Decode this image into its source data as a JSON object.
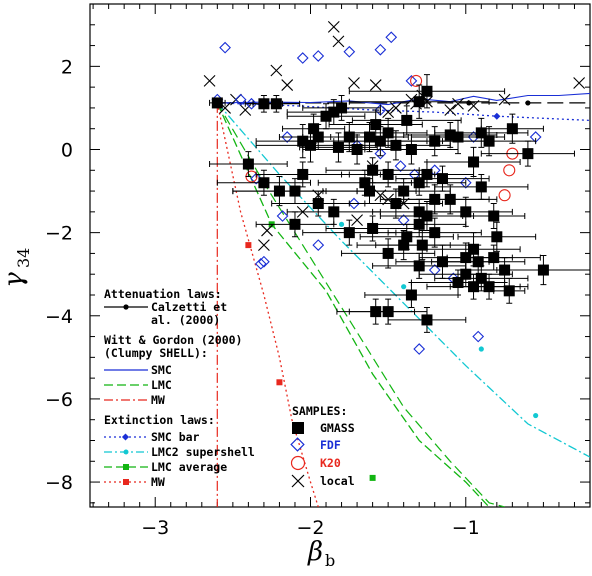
{
  "chart_data": {
    "type": "scatter",
    "xlabel": "β",
    "xlabel_sub": "b",
    "ylabel": "γ",
    "ylabel_sub": "34",
    "xlim": [
      -3.42,
      -0.2
    ],
    "ylim": [
      -8.6,
      3.5
    ],
    "xticks_major": [
      -3,
      -2,
      -1
    ],
    "xtick_labels": [
      "−3",
      "−2",
      "−1"
    ],
    "yticks_major": [
      2,
      0,
      -2,
      -4,
      -6,
      -8
    ],
    "ytick_labels": [
      "2",
      "0",
      "−2",
      "−4",
      "−6",
      "−8"
    ],
    "colors": {
      "gmass": "#000000",
      "fdf": "#1a2fd6",
      "k20": "#e8281e",
      "local": "#000000",
      "smc_shell": "#1a2fd6",
      "lmc_shell": "#12b512",
      "mw_shell": "#e8281e",
      "smc_bar": "#1a2fd6",
      "lmc2": "#12c8d2",
      "lmc_avg": "#12b512",
      "mw_ext": "#e8281e"
    },
    "legend_models": {
      "attenuation_head": "Attenuation laws:",
      "calzetti_1": "Calzetti et",
      "calzetti_2": "al. (2000)",
      "witt_head_1": "Witt & Gordon (2000)",
      "witt_head_2": "(Clumpy SHELL):",
      "smc": "SMC",
      "lmc": "LMC",
      "mw": "MW",
      "extinction_head": "Extinction laws:",
      "smc_bar": "SMC bar",
      "lmc2": "LMC2 supershell",
      "lmc_avg": "LMC average",
      "mw_ext": "MW"
    },
    "legend_samples": {
      "head": "SAMPLES:",
      "gmass": "GMASS",
      "fdf": "FDF",
      "k20": "K20",
      "local": "local"
    },
    "series": [
      {
        "name": "Calzetti et al. (2000)",
        "kind": "line",
        "x": [
          -2.6,
          -0.2
        ],
        "y": [
          1.12,
          1.12
        ],
        "markers_x": [
          -1.3,
          -0.98,
          -0.6
        ],
        "markers_y": [
          1.12,
          1.12,
          1.12
        ]
      },
      {
        "name": "SMC",
        "kind": "line",
        "x": [
          -2.6,
          -2.3,
          -2.0,
          -1.75,
          -1.5,
          -1.3,
          -1.1,
          -0.95,
          -0.8,
          -0.6,
          -0.4,
          -0.2
        ],
        "y": [
          1.12,
          1.14,
          1.13,
          1.17,
          1.08,
          1.22,
          1.15,
          1.28,
          1.18,
          1.3,
          1.3,
          1.35
        ]
      },
      {
        "name": "LMC",
        "kind": "line",
        "x": [
          -2.6,
          -2.3,
          -2.0,
          -1.7,
          -1.4,
          -1.1,
          -0.85,
          -0.75
        ],
        "y": [
          1.12,
          -0.8,
          -2.6,
          -4.4,
          -6.2,
          -7.5,
          -8.5,
          -8.6
        ]
      },
      {
        "name": "MW",
        "kind": "line",
        "x": [
          -2.6,
          -2.6
        ],
        "y": [
          1.12,
          -8.6
        ]
      },
      {
        "name": "SMC bar",
        "kind": "line",
        "x": [
          -2.6,
          -2.1,
          -1.6,
          -1.2,
          -0.8,
          -0.2
        ],
        "y": [
          1.12,
          1.05,
          0.95,
          0.9,
          0.8,
          0.7
        ],
        "markers_x": [
          -0.8
        ],
        "markers_y": [
          0.8
        ]
      },
      {
        "name": "LMC2 supershell",
        "kind": "line",
        "x": [
          -2.6,
          -2.2,
          -1.8,
          -1.4,
          -1.0,
          -0.6,
          -0.2
        ],
        "y": [
          1.12,
          -0.6,
          -2.2,
          -3.7,
          -5.2,
          -6.6,
          -7.4
        ],
        "markers_x": [
          -1.8,
          -1.4,
          -0.9,
          -0.55
        ],
        "markers_y": [
          -1.8,
          -3.3,
          -4.8,
          -6.4
        ]
      },
      {
        "name": "LMC average",
        "kind": "line",
        "x": [
          -2.6,
          -2.25,
          -1.9,
          -1.6,
          -1.3,
          -1.0,
          -0.85
        ],
        "y": [
          1.12,
          -1.8,
          -3.4,
          -5.4,
          -7.0,
          -8.0,
          -8.6
        ],
        "markers_x": [
          -2.25,
          -1.6
        ],
        "markers_y": [
          -1.8,
          -7.9
        ]
      },
      {
        "name": "MW extinction",
        "kind": "line",
        "x": [
          -2.6,
          -2.45,
          -2.3,
          -2.2,
          -2.12,
          -2.0,
          -1.95
        ],
        "y": [
          1.12,
          -1.5,
          -3.5,
          -5.0,
          -6.5,
          -8.0,
          -8.6
        ],
        "markers_x": [
          -2.4,
          -2.2
        ],
        "markers_y": [
          -2.3,
          -5.6
        ]
      },
      {
        "name": "GMASS",
        "kind": "scatter",
        "x": [
          -2.6,
          -2.3,
          -2.22,
          -1.8,
          -1.85,
          -1.9,
          -1.98,
          -1.95,
          -2.05,
          -2.0,
          -1.75,
          -1.82,
          -1.7,
          -1.58,
          -1.62,
          -1.5,
          -1.55,
          -1.45,
          -1.38,
          -1.3,
          -1.25,
          -1.2,
          -1.35,
          -1.1,
          -1.05,
          -0.9,
          -0.85,
          -0.7,
          -2.1,
          -1.6,
          -1.3,
          -1.2,
          -0.95,
          -0.6,
          -1.5,
          -1.4,
          -1.45,
          -1.3,
          -1.25,
          -1.15,
          -1.1,
          -1.0,
          -0.9,
          -1.3,
          -1.38,
          -1.28,
          -1.5,
          -1.6,
          -1.65,
          -1.15,
          -1.2,
          -0.82,
          -0.95,
          -0.92,
          -0.8,
          -0.9,
          -1.05,
          -0.95,
          -0.82,
          -0.72,
          -0.5,
          -1.75,
          -1.85,
          -1.25,
          -2.2,
          -2.3,
          -2.4,
          -1.58,
          -1.35,
          -1.0,
          -1.5,
          -1.4,
          -1.3,
          -1.0,
          -0.75,
          -0.85,
          -2.1,
          -1.95,
          -2.05,
          -1.62,
          -1.25
        ],
        "y": [
          1.12,
          1.1,
          1.1,
          1.0,
          0.9,
          0.8,
          0.5,
          0.3,
          0.2,
          0.1,
          0.3,
          0.05,
          0.0,
          0.6,
          0.3,
          0.4,
          0.2,
          0.1,
          0.7,
          1.15,
          1.4,
          0.2,
          0.0,
          0.35,
          0.3,
          0.4,
          0.2,
          0.5,
          -1.0,
          -0.5,
          -0.8,
          -1.2,
          -0.3,
          -0.1,
          -0.6,
          -1.0,
          -1.3,
          -1.5,
          -1.6,
          -0.7,
          -1.2,
          -1.5,
          -0.9,
          -1.8,
          -2.1,
          -2.3,
          -2.5,
          -1.9,
          -0.8,
          -2.7,
          -2.0,
          -1.6,
          -2.4,
          -2.7,
          -2.1,
          -3.1,
          -3.2,
          -3.3,
          -2.6,
          -3.4,
          -2.9,
          -2.0,
          -1.5,
          -0.6,
          -1.0,
          -0.8,
          -0.35,
          -3.9,
          -3.5,
          -2.6,
          -3.9,
          -2.3,
          -2.8,
          -3.0,
          -2.9,
          -3.3,
          -1.8,
          -1.3,
          -0.6,
          -1.0,
          -4.1
        ],
        "y_err": [
          0.1,
          0.2,
          0.2,
          0.3,
          0.3,
          0.3,
          0.35,
          0.3,
          0.4,
          0.4,
          0.35,
          0.35,
          0.35,
          0.35,
          0.35,
          0.35,
          0.35,
          0.35,
          0.35,
          0.4,
          0.4,
          0.35,
          0.35,
          0.3,
          0.4,
          0.35,
          0.35,
          0.35,
          0.3,
          0.3,
          0.3,
          0.35,
          0.35,
          0.3,
          0.3,
          0.3,
          0.35,
          0.3,
          0.35,
          0.3,
          0.35,
          0.35,
          0.3,
          0.3,
          0.3,
          0.35,
          0.35,
          0.3,
          0.3,
          0.4,
          0.35,
          0.3,
          0.4,
          0.4,
          0.35,
          0.3,
          0.3,
          0.3,
          0.3,
          0.3,
          0.35,
          0.3,
          0.3,
          0.3,
          0.35,
          0.3,
          0.3,
          0.3,
          0.3,
          0.35,
          0.3,
          0.35,
          0.3,
          0.3,
          0.3,
          0.3,
          0.3,
          0.3,
          0.3,
          0.3,
          0.3
        ],
        "x_err": [
          0.05,
          0.12,
          0.15,
          0.25,
          0.3,
          0.25,
          0.2,
          0.25,
          0.3,
          0.35,
          0.3,
          0.25,
          0.35,
          0.3,
          0.25,
          0.25,
          0.3,
          0.35,
          0.35,
          0.45,
          0.5,
          0.35,
          0.3,
          0.3,
          0.3,
          0.3,
          0.3,
          0.2,
          0.4,
          0.3,
          0.3,
          0.35,
          0.3,
          0.3,
          0.3,
          0.3,
          0.3,
          0.3,
          0.3,
          0.3,
          0.3,
          0.3,
          0.3,
          0.3,
          0.3,
          0.3,
          0.3,
          0.3,
          0.3,
          0.3,
          0.3,
          0.2,
          0.3,
          0.3,
          0.25,
          0.3,
          0.3,
          0.3,
          0.3,
          0.1,
          0.3,
          0.3,
          0.3,
          0.3,
          0.3,
          0.3,
          0.25,
          0.25,
          0.3,
          0.3,
          0.25,
          0.3,
          0.3,
          0.3,
          0.25,
          0.25,
          0.25,
          0.3,
          0.3,
          0.3,
          0.25
        ]
      },
      {
        "name": "FDF",
        "kind": "scatter",
        "x": [
          -2.55,
          -2.45,
          -2.38,
          -2.3,
          -2.05,
          -1.95,
          -1.75,
          -1.55,
          -1.48,
          -1.35,
          -1.55,
          -1.9,
          -2.15,
          -1.7,
          -1.55,
          -1.42,
          -1.33,
          -1.3,
          -2.3,
          -2.32,
          -2.6,
          -1.2,
          -0.95,
          -1.0,
          -1.4,
          -1.08,
          -0.92,
          -2.35,
          -1.72,
          -1.2,
          -0.55,
          -1.95,
          -2.18
        ],
        "y": [
          2.45,
          1.2,
          1.1,
          1.1,
          2.2,
          2.25,
          2.35,
          2.4,
          2.7,
          1.65,
          0.95,
          0.8,
          0.3,
          0.1,
          -0.1,
          -0.4,
          -0.6,
          -4.8,
          -2.7,
          -2.75,
          1.2,
          -0.5,
          0.3,
          -0.8,
          -1.7,
          -3.1,
          -4.5,
          -0.7,
          -1.3,
          -2.9,
          0.3,
          -2.3,
          -1.6
        ]
      },
      {
        "name": "K20",
        "kind": "scatter",
        "x": [
          -1.32,
          -0.7,
          -0.72,
          -0.75,
          -2.38
        ],
        "y": [
          1.65,
          -0.1,
          -0.5,
          -1.1,
          -0.65
        ]
      },
      {
        "name": "local",
        "kind": "scatter",
        "x": [
          -2.65,
          -2.55,
          -2.48,
          -2.42,
          -2.22,
          -2.15,
          -1.85,
          -1.82,
          -1.72,
          -1.58,
          -1.5,
          -1.45,
          -1.35,
          -1.32,
          -1.28,
          -1.25,
          -1.1,
          -1.05,
          -0.95,
          -0.75,
          -0.27,
          -1.6,
          -1.4,
          -1.55,
          -2.3,
          -2.28,
          -2.05,
          -1.95,
          -1.7,
          -1.5
        ],
        "y": [
          1.65,
          1.0,
          1.2,
          0.95,
          1.9,
          1.55,
          2.95,
          2.6,
          1.6,
          1.55,
          0.9,
          1.0,
          1.2,
          1.1,
          1.3,
          1.15,
          0.95,
          1.1,
          1.05,
          1.2,
          1.6,
          -0.4,
          -1.3,
          -1.1,
          -2.3,
          -1.95,
          -1.5,
          -1.1,
          -1.7,
          -1.2
        ]
      }
    ]
  }
}
